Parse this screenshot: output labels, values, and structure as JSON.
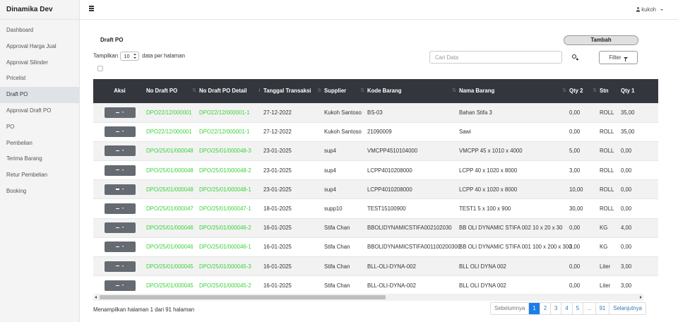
{
  "app": {
    "brand": "Dinamika Dev",
    "user": "kukoh"
  },
  "sidebar": {
    "items": [
      {
        "label": "Dashboard",
        "active": false
      },
      {
        "label": "Approval Harga Jual",
        "active": false
      },
      {
        "label": "Approval Silinder",
        "active": false
      },
      {
        "label": "Pricelist",
        "active": false
      },
      {
        "label": "Draft PO",
        "active": true
      },
      {
        "label": "Approval Draft PO",
        "active": false
      },
      {
        "label": "PO",
        "active": false
      },
      {
        "label": "Pembelian",
        "active": false
      },
      {
        "label": "Terima Barang",
        "active": false
      },
      {
        "label": "Retur Pembelian",
        "active": false
      },
      {
        "label": "Booking",
        "active": false
      }
    ]
  },
  "page": {
    "title": "Draft PO",
    "add_label": "Tambah",
    "show_prefix": "Tampilkan",
    "page_length": "10",
    "show_suffix": "data per halaman",
    "search_placeholder": "Cari Data",
    "filter_label": "Filter"
  },
  "table": {
    "columns": [
      "Aksi",
      "No Draft PO",
      "No Draft PO Detail",
      "Tanggal Transaksi",
      "Supplier",
      "Kode Barang",
      "Nama Barang",
      "Qty 2",
      "Stn",
      "Qty 1"
    ],
    "rows": [
      {
        "no_po": "DPO22/12/000001",
        "no_detail": "DPO22/12/000001-1",
        "tanggal": "27-12-2022",
        "supplier": "Kukoh Santoso",
        "kode": "BS-03",
        "nama": "Bahan Stifa 3",
        "qty2": "0,00",
        "stn": "ROLL",
        "qty1": "35,00"
      },
      {
        "no_po": "DPO22/12/000001",
        "no_detail": "DPO22/12/000001-1",
        "tanggal": "27-12-2022",
        "supplier": "Kukoh Santoso",
        "kode": "21090009",
        "nama": "Sawi",
        "qty2": "0,00",
        "stn": "ROLL",
        "qty1": "35,00"
      },
      {
        "no_po": "DPO/25/01/000048",
        "no_detail": "DPO/25/01/000048-3",
        "tanggal": "23-01-2025",
        "supplier": "sup4",
        "kode": "VMCPP4510104000",
        "nama": "VMCPP 45 x 1010 x 4000",
        "qty2": "5,00",
        "stn": "ROLL",
        "qty1": "0,00"
      },
      {
        "no_po": "DPO/25/01/000048",
        "no_detail": "DPO/25/01/000048-2",
        "tanggal": "23-01-2025",
        "supplier": "sup4",
        "kode": "LCPP4010208000",
        "nama": "LCPP 40 x 1020 x 8000",
        "qty2": "3,00",
        "stn": "ROLL",
        "qty1": "0,00"
      },
      {
        "no_po": "DPO/25/01/000048",
        "no_detail": "DPO/25/01/000048-1",
        "tanggal": "23-01-2025",
        "supplier": "sup4",
        "kode": "LCPP4010208000",
        "nama": "LCPP 40 x 1020 x 8000",
        "qty2": "10,00",
        "stn": "ROLL",
        "qty1": "0,00"
      },
      {
        "no_po": "DPO/25/01/000047",
        "no_detail": "DPO/25/01/000047-1",
        "tanggal": "18-01-2025",
        "supp": "",
        "supplier": "supp10",
        "kode": "TEST15100900",
        "nama": "TEST1 5 x 100 x 900",
        "qty2": "30,00",
        "stn": "ROLL",
        "qty1": "0,00"
      },
      {
        "no_po": "DPO/25/01/000046",
        "no_detail": "DPO/25/01/000046-2",
        "tanggal": "16-01-2025",
        "supplier": "Stifa Chan",
        "kode": "BBOLIDYNAMICSTIFA002102030",
        "nama": "BB OLI DYNAMIC STIFA 002 10 x 20 x 30",
        "qty2": "0,00",
        "stn": "KG",
        "qty1": "4,00"
      },
      {
        "no_po": "DPO/25/01/000046",
        "no_detail": "DPO/25/01/000046-1",
        "tanggal": "16-01-2025",
        "supplier": "Stifa Chan",
        "kode": "BBOLIDYNAMICSTIFA001100200300",
        "nama": "BB OLI DYNAMIC STIFA 001 100 x 200 x 300",
        "qty2": "3,00",
        "stn": "KG",
        "qty1": "0,00"
      },
      {
        "no_po": "DPO/25/01/000045",
        "no_detail": "DPO/25/01/000045-3",
        "tanggal": "16-01-2025",
        "supplier": "Stifa Chan",
        "kode": "BLL-OLI-DYNA-002",
        "nama": "BLL OLI DYNA 002",
        "qty2": "0,00",
        "stn": "Liter",
        "qty1": "3,00"
      },
      {
        "no_po": "DPO/25/01/000045",
        "no_detail": "DPO/25/01/000045-2",
        "tanggal": "16-01-2025",
        "supplier": "Stifa Chan",
        "kode": "BLL-OLI-DYNA-002",
        "nama": "BLL OLI DYNA 002",
        "qty2": "0,00",
        "stn": "Liter",
        "qty1": "3,00"
      }
    ]
  },
  "footer": {
    "info": "Menampilkan halaman 1 dari 91 halaman",
    "prev": "Sebelumnya",
    "pages": [
      "1",
      "2",
      "3",
      "4",
      "5",
      "...",
      "91"
    ],
    "next": "Selanjutnya"
  },
  "colors": {
    "link": "#39d339",
    "header_bg": "#33373d",
    "active_page": "#1a7de8"
  }
}
